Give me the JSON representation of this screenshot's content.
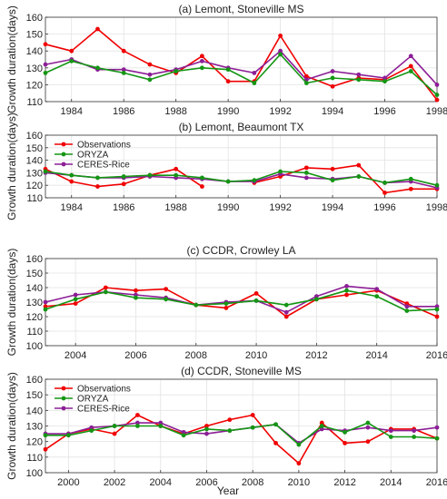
{
  "colors": {
    "observations": "#f00000",
    "oryza": "#149614",
    "ceres": "#8c1e96",
    "grid": "#e3e3e3",
    "axis": "#333333"
  },
  "xlabel": "Year",
  "chart_data": [
    {
      "type": "line",
      "title": "(a) Lemont, Stoneville MS",
      "ylabel": "Growth duration(days)",
      "ylim": [
        110,
        160
      ],
      "yticks": [
        110,
        120,
        130,
        140,
        150,
        160
      ],
      "xlim": [
        1983,
        1998
      ],
      "xticks": [
        1984,
        1986,
        1988,
        1990,
        1992,
        1994,
        1996,
        1998
      ],
      "grid": true,
      "legend": [],
      "series": [
        {
          "key": "obs",
          "x": [
            1983,
            1984,
            1985,
            1986,
            1987,
            1988,
            1989,
            1990,
            1991,
            1992,
            1993,
            1994,
            1995,
            1996,
            1997,
            1998
          ],
          "values": [
            144,
            140,
            153,
            140,
            132,
            127,
            137,
            122,
            122,
            149,
            125,
            119,
            124,
            123,
            131,
            111
          ]
        },
        {
          "key": "oryza",
          "x": [
            1983,
            1984,
            1985,
            1986,
            1987,
            1988,
            1989,
            1990,
            1991,
            1992,
            1993,
            1994,
            1995,
            1996,
            1997,
            1998
          ],
          "values": [
            127,
            134,
            130,
            127,
            123,
            128,
            130,
            129,
            121,
            138,
            121,
            124,
            123,
            122,
            128,
            114
          ]
        },
        {
          "key": "ceres",
          "x": [
            1983,
            1984,
            1985,
            1986,
            1987,
            1988,
            1989,
            1990,
            1991,
            1992,
            1993,
            1994,
            1995,
            1996,
            1997,
            1998
          ],
          "values": [
            132,
            135,
            129,
            129,
            126,
            129,
            134,
            130,
            127,
            140,
            123,
            128,
            126,
            124,
            137,
            120
          ]
        }
      ]
    },
    {
      "type": "line",
      "title": "(b) Lemont, Beaumont TX",
      "ylabel": "Growth duration(days)",
      "ylim": [
        110,
        160
      ],
      "yticks": [
        110,
        120,
        130,
        140,
        150,
        160
      ],
      "xlim": [
        1983,
        1998
      ],
      "xticks": [
        1984,
        1986,
        1988,
        1990,
        1992,
        1994,
        1996,
        1998
      ],
      "grid": true,
      "legend": [
        "Observations",
        "ORYZA",
        "CERES-Rice"
      ],
      "series": [
        {
          "key": "obs",
          "name": "Observations",
          "x": [
            1983,
            1984,
            1985,
            1986,
            1987,
            1988,
            1989
          ],
          "values": [
            133,
            123,
            119,
            121,
            128,
            133,
            119
          ]
        },
        {
          "key": "obs",
          "x": [
            1991,
            1992,
            1993,
            1994,
            1995,
            1996,
            1997,
            1998
          ],
          "values": [
            122,
            127,
            134,
            133,
            136,
            114,
            117,
            117
          ]
        },
        {
          "key": "oryza",
          "name": "ORYZA",
          "x": [
            1983,
            1984,
            1985,
            1986,
            1987,
            1988,
            1989,
            1990,
            1991,
            1992,
            1993,
            1994,
            1995,
            1996,
            1997,
            1998
          ],
          "values": [
            131,
            128,
            126,
            127,
            128,
            128,
            126,
            123,
            124,
            131,
            130,
            124,
            127,
            122,
            125,
            120
          ]
        },
        {
          "key": "ceres",
          "name": "CERES-Rice",
          "x": [
            1983,
            1984,
            1985,
            1986,
            1987,
            1988,
            1989,
            1990,
            1991,
            1992,
            1993,
            1994,
            1995,
            1996,
            1997,
            1998
          ],
          "values": [
            130,
            128,
            126,
            126,
            127,
            126,
            125,
            123,
            123,
            129,
            126,
            125,
            127,
            122,
            123,
            118
          ]
        }
      ]
    },
    {
      "type": "line",
      "title": "(c) CCDR, Crowley LA",
      "ylabel": "Growth duration(days)",
      "ylim": [
        100,
        160
      ],
      "yticks": [
        100,
        110,
        120,
        130,
        140,
        150,
        160
      ],
      "xlim": [
        2003,
        2016
      ],
      "xticks": [
        2004,
        2006,
        2008,
        2010,
        2012,
        2014,
        2016
      ],
      "grid": true,
      "legend": [],
      "series": [
        {
          "key": "obs",
          "x": [
            2003,
            2004,
            2005,
            2006,
            2007,
            2008,
            2009,
            2010,
            2011,
            2012,
            2013,
            2014,
            2015,
            2016
          ],
          "values": [
            127,
            129,
            140,
            138,
            139,
            128,
            126,
            136,
            120,
            132,
            135,
            138,
            129,
            120
          ]
        },
        {
          "key": "oryza",
          "x": [
            2003,
            2004,
            2005,
            2006,
            2007,
            2008,
            2009,
            2010,
            2011,
            2012,
            2013,
            2014,
            2015,
            2016
          ],
          "values": [
            125,
            132,
            137,
            133,
            132,
            128,
            129,
            131,
            128,
            132,
            138,
            134,
            124,
            125
          ]
        },
        {
          "key": "ceres",
          "x": [
            2003,
            2004,
            2005,
            2006,
            2007,
            2008,
            2009,
            2010,
            2011,
            2012,
            2013,
            2014,
            2015,
            2016
          ],
          "values": [
            130,
            135,
            137,
            135,
            133,
            128,
            130,
            131,
            123,
            134,
            141,
            139,
            127,
            127
          ]
        }
      ]
    },
    {
      "type": "line",
      "title": "(d) CCDR, Stoneville MS",
      "ylabel": "Growth duration(days)",
      "ylim": [
        100,
        160
      ],
      "yticks": [
        100,
        110,
        120,
        130,
        140,
        150,
        160
      ],
      "xlim": [
        1999,
        2016
      ],
      "xticks": [
        2000,
        2002,
        2004,
        2006,
        2008,
        2010,
        2012,
        2014,
        2016
      ],
      "grid": true,
      "legend": [
        "Observations",
        "ORYZA",
        "CERES-Rice"
      ],
      "series": [
        {
          "key": "obs",
          "name": "Observations",
          "x": [
            1999,
            2000,
            2001,
            2002,
            2003,
            2004,
            2005,
            2006,
            2007,
            2008,
            2009,
            2010,
            2011,
            2012,
            2013,
            2014,
            2015,
            2016
          ],
          "values": [
            115,
            125,
            128,
            125,
            137,
            130,
            125,
            130,
            134,
            137,
            119,
            106,
            132,
            119,
            120,
            128,
            128,
            122
          ]
        },
        {
          "key": "oryza",
          "name": "ORYZA",
          "x": [
            1999,
            2000,
            2001,
            2002,
            2003,
            2004,
            2005,
            2006,
            2007,
            2008,
            2009,
            2010,
            2011,
            2012,
            2013,
            2014,
            2015,
            2016
          ],
          "values": [
            124,
            124,
            127,
            130,
            130,
            130,
            124,
            128,
            127,
            129,
            131,
            118,
            130,
            126,
            132,
            123,
            123,
            122
          ]
        },
        {
          "key": "ceres",
          "name": "CERES-Rice",
          "x": [
            1999,
            2000,
            2001,
            2002,
            2003,
            2004,
            2005,
            2006,
            2007,
            2008,
            2009,
            2010,
            2011,
            2012,
            2013,
            2014,
            2015,
            2016
          ],
          "values": [
            125,
            125,
            129,
            130,
            132,
            132,
            126,
            125,
            127,
            129,
            131,
            119,
            128,
            127,
            129,
            127,
            127,
            129
          ]
        }
      ]
    }
  ]
}
